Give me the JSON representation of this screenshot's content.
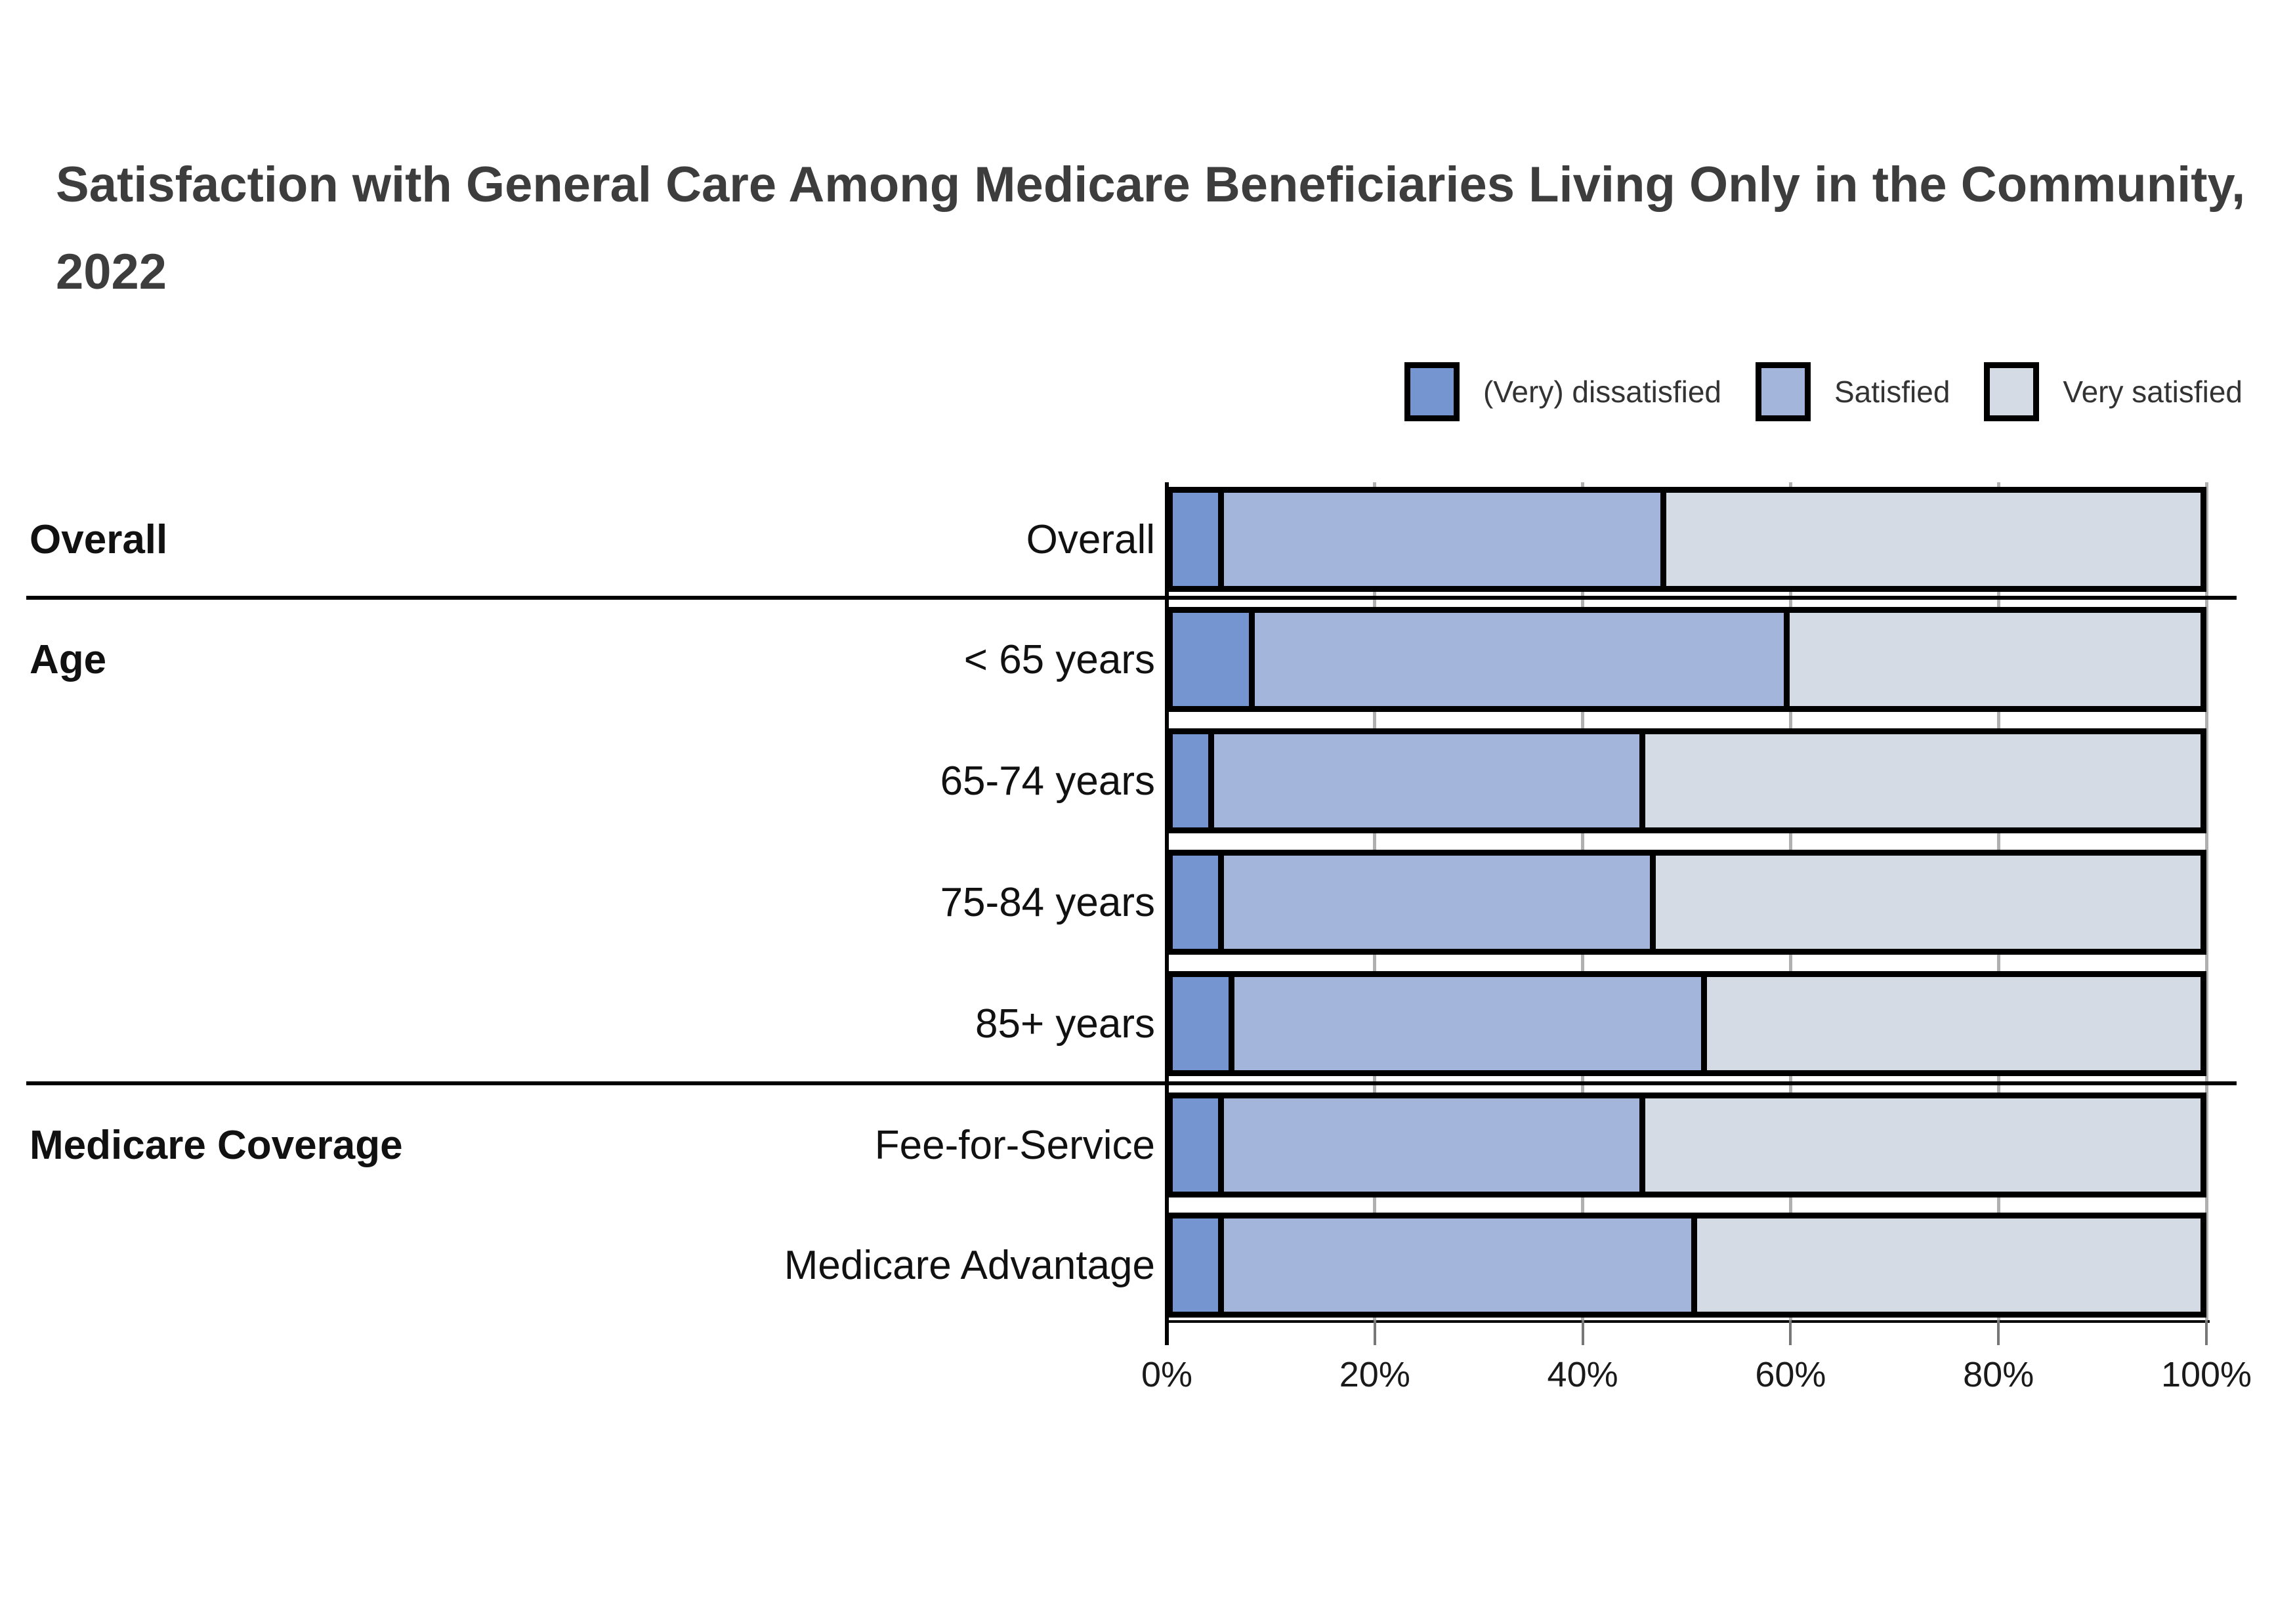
{
  "title": "Satisfaction with General Care Among Medicare Beneficiaries Living Only in the Community, 2022",
  "chart_data": {
    "type": "bar",
    "orientation": "horizontal",
    "stacked": true,
    "unit": "%",
    "title": "Satisfaction with General Care Among Medicare Beneficiaries Living Only in the Community, 2022",
    "legend_position": "top-right",
    "grid": true,
    "categories": [
      "Overall",
      "< 65 years",
      "65-74 years",
      "75-84 years",
      "85+ years",
      "Fee-for-Service",
      "Medicare Advantage"
    ],
    "row_groups": [
      {
        "label": "Overall",
        "rows": [
          0
        ]
      },
      {
        "label": "Age",
        "rows": [
          1,
          2,
          3,
          4
        ]
      },
      {
        "label": "Medicare Coverage",
        "rows": [
          5,
          6
        ]
      }
    ],
    "series": [
      {
        "name": "(Very) dissatisfied",
        "color": "#7495cf",
        "values": [
          5,
          8,
          4,
          5,
          6,
          5,
          5
        ]
      },
      {
        "name": "Satisfied",
        "color": "#a3b5db",
        "values": [
          43,
          52,
          42,
          42,
          46,
          41,
          46
        ]
      },
      {
        "name": "Very satisfied",
        "color": "#d5dbe5",
        "values": [
          52,
          40,
          54,
          53,
          48,
          54,
          49
        ]
      }
    ],
    "x_axis": {
      "range": [
        0,
        100
      ],
      "ticks": [
        0,
        20,
        40,
        60,
        80,
        100
      ],
      "tick_labels": [
        "0%",
        "20%",
        "40%",
        "60%",
        "80%",
        "100%"
      ]
    },
    "colors": {
      "bar_border": "#000000",
      "gridline": "#b0b0b0",
      "separator": "#000000",
      "title_text": "#3d3d3d",
      "label_text": "#111111"
    }
  }
}
